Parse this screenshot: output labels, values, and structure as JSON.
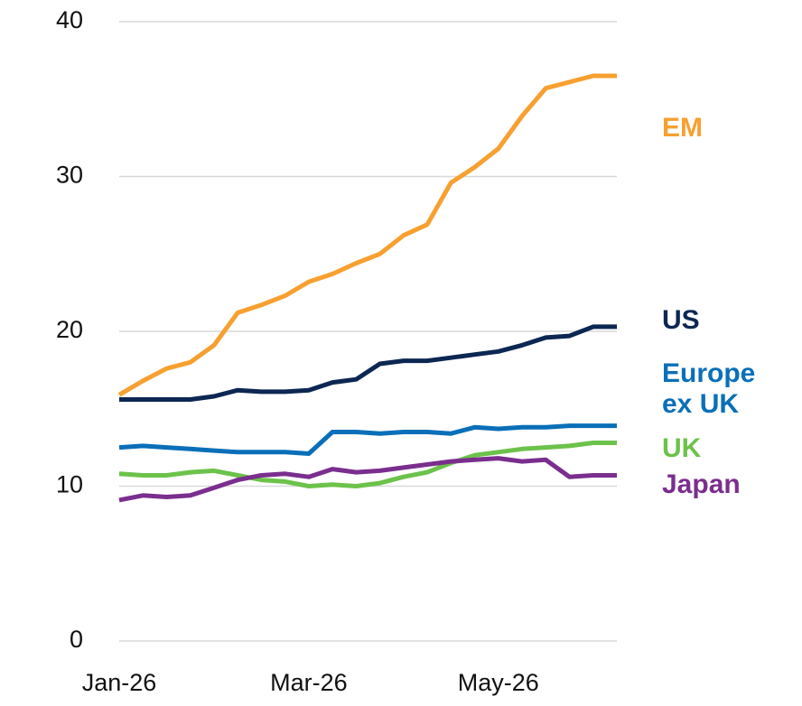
{
  "chart_data": {
    "type": "line",
    "categories": [
      "Jan-26",
      null,
      null,
      null,
      null,
      null,
      null,
      null,
      "Mar-26",
      null,
      null,
      null,
      null,
      null,
      null,
      null,
      "May-26",
      null,
      null,
      null,
      null,
      null
    ],
    "series": [
      {
        "name": "EM",
        "color": "#f7a030",
        "values": [
          15.9,
          16.8,
          17.6,
          18.0,
          19.1,
          21.2,
          21.7,
          22.3,
          23.2,
          23.7,
          24.4,
          25.0,
          26.2,
          26.9,
          29.6,
          30.6,
          31.8,
          33.9,
          35.7,
          36.1,
          36.5,
          36.5
        ]
      },
      {
        "name": "US",
        "color": "#0c2752",
        "values": [
          15.6,
          15.6,
          15.6,
          15.6,
          15.8,
          16.2,
          16.1,
          16.1,
          16.2,
          16.7,
          16.9,
          17.9,
          18.1,
          18.1,
          18.3,
          18.5,
          18.7,
          19.1,
          19.6,
          19.7,
          20.3,
          20.3
        ]
      },
      {
        "name": "Europe ex UK",
        "color": "#0a6fb8",
        "values": [
          12.5,
          12.6,
          12.5,
          12.4,
          12.3,
          12.2,
          12.2,
          12.2,
          12.1,
          13.5,
          13.5,
          13.4,
          13.5,
          13.5,
          13.4,
          13.8,
          13.7,
          13.8,
          13.8,
          13.9,
          13.9,
          13.9
        ]
      },
      {
        "name": "UK",
        "color": "#6cc24a",
        "values": [
          10.8,
          10.7,
          10.7,
          10.9,
          11.0,
          10.7,
          10.4,
          10.3,
          10.0,
          10.1,
          10.0,
          10.2,
          10.6,
          10.9,
          11.5,
          12.0,
          12.2,
          12.4,
          12.5,
          12.6,
          12.8,
          12.8
        ]
      },
      {
        "name": "Japan",
        "color": "#7a2e8e",
        "values": [
          9.1,
          9.4,
          9.3,
          9.4,
          9.9,
          10.4,
          10.7,
          10.8,
          10.6,
          11.1,
          10.9,
          11.0,
          11.2,
          11.4,
          11.6,
          11.7,
          11.8,
          11.6,
          11.7,
          10.6,
          10.7,
          10.7
        ]
      }
    ],
    "ylim": [
      0,
      40
    ],
    "yticks": [
      0,
      10,
      20,
      30,
      40
    ],
    "grid": true
  }
}
